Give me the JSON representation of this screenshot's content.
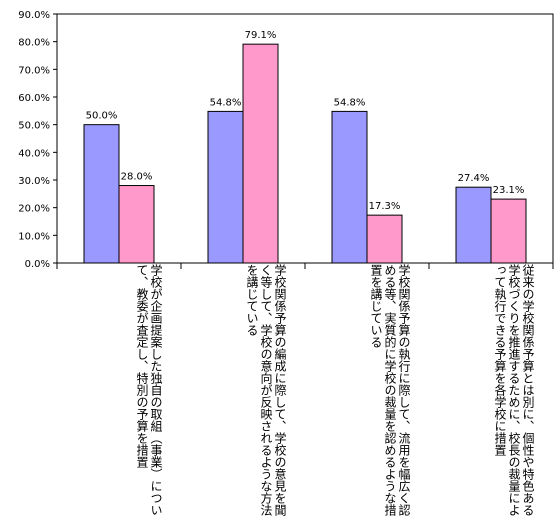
{
  "chart_data": {
    "type": "bar",
    "ylim": [
      0,
      90
    ],
    "yticks": [
      "0.0%",
      "10.0%",
      "20.0%",
      "30.0%",
      "40.0%",
      "50.0%",
      "60.0%",
      "70.0%",
      "80.0%",
      "90.0%"
    ],
    "grid": false,
    "categories": [
      "学校が企画提案した独自の取組（事業）について、教委が査定し、特別の予算を措置",
      "学校関係予算の編成に際して、学校の意見を聞く等して、学校の意向が反映されるような方法を講じている",
      "学校関係予算の執行に際して、流用を幅広く認める等、実質的に学校の裁量を認めるような措置を講じている",
      "従来の学校関係予算とは別に、個性や特色ある学校づくりを推進するために、校長の裁量によって執行できる予算を各学校に措置"
    ],
    "series": [
      {
        "color": "#9999ff",
        "values": [
          50.0,
          54.8,
          54.8,
          27.4
        ],
        "labels": [
          "50.0%",
          "54.8%",
          "54.8%",
          "27.4%"
        ]
      },
      {
        "color": "#ff99cc",
        "values": [
          28.0,
          79.1,
          17.3,
          23.1
        ],
        "labels": [
          "28.0%",
          "79.1%",
          "17.3%",
          "23.1%"
        ]
      }
    ]
  }
}
